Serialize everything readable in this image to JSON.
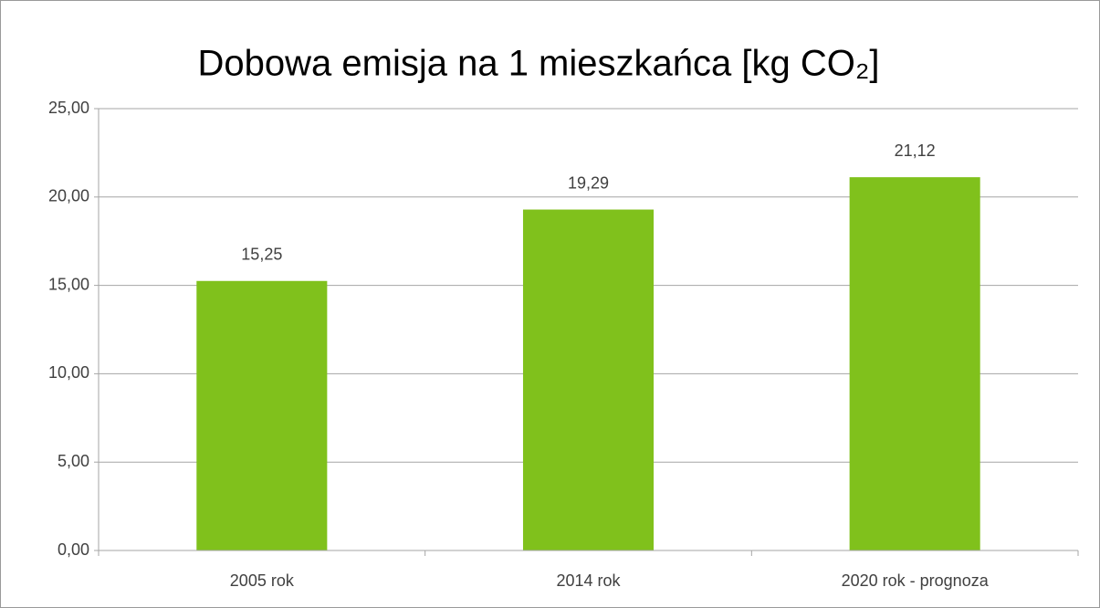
{
  "chart_data": {
    "type": "bar",
    "title": "Dobowa emisja na 1 mieszkańca [kg CO₂]",
    "categories": [
      "2005 rok",
      "2014 rok",
      "2020 rok - prognoza"
    ],
    "values": [
      15.25,
      19.29,
      21.12
    ],
    "value_labels": [
      "15,25",
      "19,29",
      "21,12"
    ],
    "color": "#80c11c",
    "ylim": [
      0,
      25
    ],
    "yticks": [
      {
        "value": 0,
        "label": "0,00"
      },
      {
        "value": 5,
        "label": "5,00"
      },
      {
        "value": 10,
        "label": "10,00"
      },
      {
        "value": 15,
        "label": "15,00"
      },
      {
        "value": 20,
        "label": "20,00"
      },
      {
        "value": 25,
        "label": "25,00"
      }
    ],
    "grid": true
  }
}
